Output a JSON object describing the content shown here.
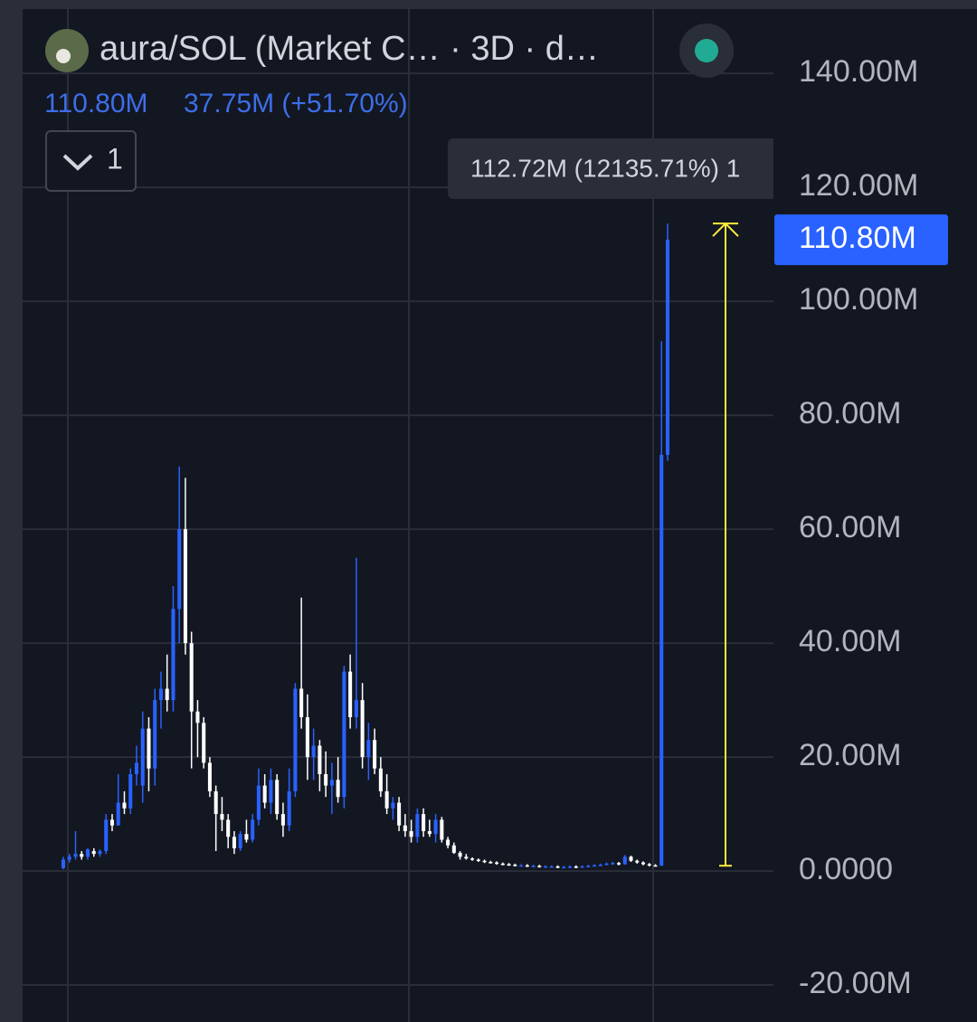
{
  "chart_data": {
    "type": "candlestick",
    "title": "aura/SOL (Market C…  · 3D · d…",
    "legend_values": [
      "110.80M",
      "37.75M (+51.70%)"
    ],
    "indicator_count": "1",
    "up_color": "#2962ff",
    "down_color": "#ffffff",
    "grid": true,
    "ylim": [
      -26.5,
      151.3
    ],
    "yticks": [
      {
        "value": 140,
        "label": "140.00M"
      },
      {
        "value": 120,
        "label": "120.00M"
      },
      {
        "value": 100,
        "label": "100.00M"
      },
      {
        "value": 80,
        "label": "80.00M"
      },
      {
        "value": 60,
        "label": "60.00M"
      },
      {
        "value": 40,
        "label": "40.00M"
      },
      {
        "value": 20,
        "label": "20.00M"
      },
      {
        "value": 0,
        "label": "0.0000"
      },
      {
        "value": -20,
        "label": "-20.00M"
      }
    ],
    "price_tag": {
      "value": 110.8,
      "label": "110.80M",
      "color": "#2962ff"
    },
    "measure": {
      "from": 0.93,
      "to": 113.65,
      "label": "112.72M (12135.71%) 1",
      "color": "#ffeb3b"
    },
    "open": [
      0.5,
      2,
      2.5,
      3,
      2.5,
      3.5,
      3,
      3.5,
      9,
      8,
      12,
      11,
      17,
      15,
      25,
      18,
      30,
      32,
      30,
      46,
      60,
      40,
      28,
      26,
      19,
      14,
      10,
      9,
      6,
      4,
      6.5,
      5.5,
      9,
      15,
      12,
      16,
      10,
      8,
      14,
      32,
      27,
      20,
      22,
      17,
      15,
      16,
      13,
      35,
      27,
      30,
      20,
      23,
      18,
      14,
      11,
      12,
      8,
      7,
      6,
      10,
      7,
      6.5,
      9,
      5.5,
      4.5,
      3.2,
      2.5,
      2.2,
      2.0,
      1.8,
      1.6,
      1.5,
      1.3,
      1.2,
      1.1,
      1.0,
      1.0,
      0.9,
      0.9,
      0.8,
      0.8,
      0.8,
      0.7,
      0.7,
      0.8,
      0.7,
      0.8,
      0.9,
      1.0,
      1.1,
      1.3,
      1.4,
      1.2,
      2.5,
      1.8,
      1.5,
      1.2,
      1.0,
      0.93,
      73.05
    ],
    "high": [
      2.5,
      3,
      7,
      3.5,
      4,
      4,
      3.8,
      10,
      10,
      17,
      14,
      18,
      22,
      28,
      27,
      32,
      35,
      38,
      50,
      71,
      69,
      42,
      30,
      27,
      20,
      15,
      13,
      10,
      7,
      7,
      9,
      10,
      18,
      17,
      18,
      17,
      12,
      18,
      33,
      48,
      31,
      25,
      23,
      21,
      19,
      20,
      36,
      38,
      55,
      33,
      26,
      25,
      20,
      17,
      13,
      13,
      10,
      9,
      11,
      11,
      9,
      10,
      9.5,
      6,
      5,
      3.5,
      3,
      2.4,
      2.2,
      2.0,
      1.8,
      1.7,
      1.5,
      1.4,
      1.3,
      1.2,
      1.2,
      1.1,
      1.1,
      1.0,
      1.0,
      1.0,
      0.9,
      1.0,
      1.0,
      1.0,
      1.1,
      1.2,
      1.3,
      1.5,
      1.6,
      1.6,
      2.8,
      2.7,
      2.0,
      1.7,
      1.4,
      1.2,
      93,
      113.65
    ],
    "low": [
      0.3,
      1.5,
      2,
      2,
      2,
      2.5,
      2.5,
      3,
      7,
      8,
      10,
      10,
      15,
      12,
      14,
      15,
      25,
      28,
      28,
      40,
      38,
      18,
      20,
      18,
      13,
      3.5,
      7,
      4,
      3,
      3.5,
      5,
      5,
      8,
      11,
      10,
      9,
      6,
      7,
      13,
      25,
      16,
      16,
      14,
      13,
      10,
      12,
      11,
      25,
      25,
      18,
      16,
      17,
      13,
      10,
      9,
      7,
      6,
      5,
      5,
      6,
      6,
      5,
      5,
      4,
      3,
      2,
      2,
      1.8,
      1.6,
      1.4,
      1.3,
      1.1,
      1.0,
      0.9,
      0.8,
      0.8,
      0.7,
      0.7,
      0.6,
      0.6,
      0.6,
      0.5,
      0.5,
      0.5,
      0.5,
      0.6,
      0.7,
      0.8,
      0.9,
      1.0,
      1.1,
      1.0,
      1.1,
      1.6,
      1.3,
      1.0,
      0.8,
      0.8,
      0.9,
      72
    ],
    "close": [
      2,
      2.5,
      3,
      2.5,
      3.8,
      3,
      3.5,
      9,
      8,
      12,
      11,
      17,
      19,
      25,
      18,
      30,
      32,
      30,
      46,
      60,
      40,
      28,
      26,
      19,
      14,
      10,
      9,
      6,
      4,
      6.5,
      5.5,
      9,
      15,
      12,
      16,
      10,
      8,
      14,
      32,
      27,
      20,
      22,
      17,
      15,
      16,
      13,
      35,
      27,
      30,
      20,
      23,
      18,
      14,
      11,
      12,
      8,
      7,
      6,
      10,
      7,
      6.5,
      9,
      5.5,
      4.5,
      3.2,
      2.5,
      2.2,
      2.0,
      1.8,
      1.6,
      1.5,
      1.3,
      1.2,
      1.1,
      1.0,
      1.0,
      0.9,
      0.9,
      0.8,
      0.8,
      0.8,
      0.7,
      0.7,
      0.8,
      0.7,
      0.8,
      0.9,
      1.0,
      1.1,
      1.3,
      1.4,
      1.2,
      2.5,
      1.8,
      1.5,
      1.2,
      1.0,
      0.93,
      73.05,
      110.8
    ]
  }
}
